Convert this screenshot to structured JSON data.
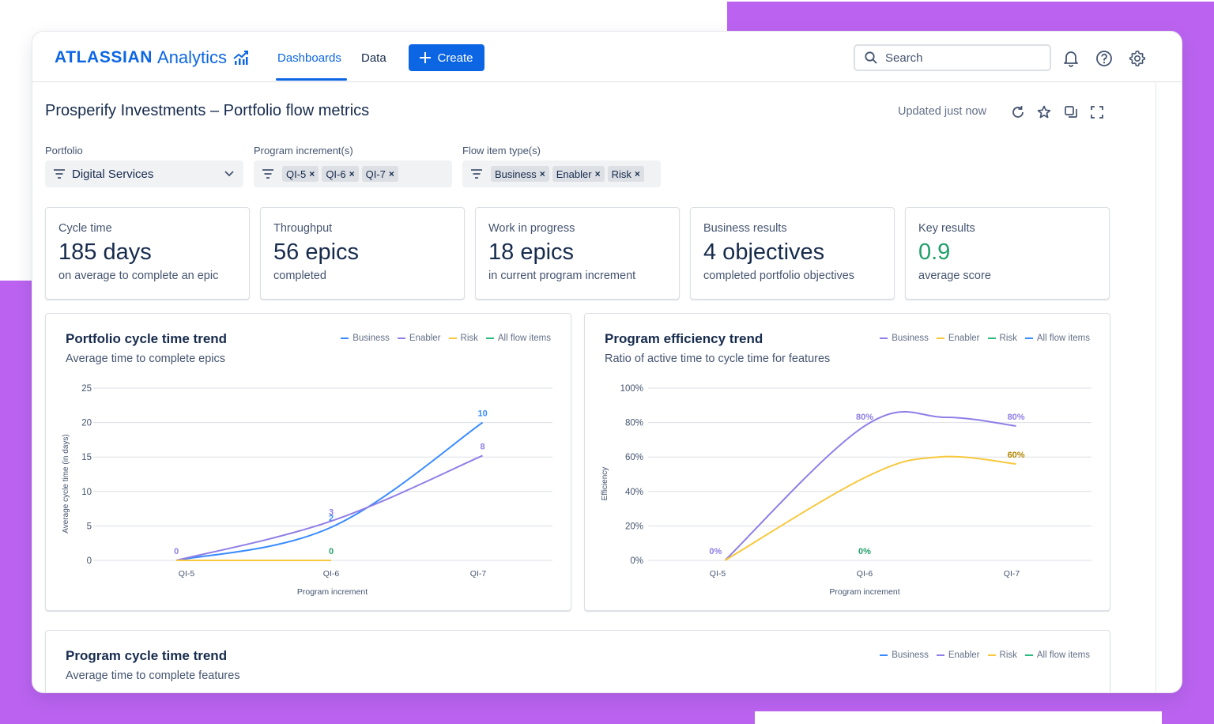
{
  "nav": {
    "brand": "ATLASSIAN",
    "product": "Analytics",
    "tabs": [
      {
        "label": "Dashboards",
        "active": true
      },
      {
        "label": "Data",
        "active": false
      }
    ],
    "create_label": "Create",
    "search_placeholder": "Search",
    "icons": [
      "bell-icon",
      "help-icon",
      "settings-icon"
    ]
  },
  "dashboard": {
    "title": "Prosperify Investments – Portfolio flow metrics",
    "updated": "Updated just now",
    "actions": [
      "refresh-icon",
      "star-icon",
      "copy-icon",
      "fullscreen-icon"
    ]
  },
  "filters": {
    "portfolio": {
      "label": "Portfolio",
      "value": "Digital Services"
    },
    "program_increments": {
      "label": "Program increment(s)",
      "chips": [
        "QI-5",
        "QI-6",
        "QI-7"
      ]
    },
    "flow_item_types": {
      "label": "Flow item type(s)",
      "chips": [
        "Business",
        "Enabler",
        "Risk"
      ]
    }
  },
  "kpis": [
    {
      "label": "Cycle time",
      "value": "185 days",
      "sub": "on average to complete an epic",
      "highlight": false
    },
    {
      "label": "Throughput",
      "value": "56 epics",
      "sub": "completed",
      "highlight": false
    },
    {
      "label": "Work in progress",
      "value": "18 epics",
      "sub": "in current program increment",
      "highlight": false
    },
    {
      "label": "Business results",
      "value": "4 objectives",
      "sub": "completed portfolio objectives",
      "highlight": false
    },
    {
      "label": "Key results",
      "value": "0.9",
      "sub": "average score",
      "highlight": true
    }
  ],
  "colors": {
    "brand": "#0c66e4",
    "business": "#4688ec",
    "enabler": "#9f8fef",
    "risk": "#f5cd47",
    "all_flow": "#2abb7f",
    "purple_line": "#8f7ee7",
    "blue_line": "#388bff",
    "yellow_line": "#f8c83c",
    "green_label": "#22a06b",
    "gold_label": "#b38600",
    "backdrop": "#bb63f0"
  },
  "cards": {
    "portfolio_cycle": {
      "title": "Portfolio cycle time trend",
      "subtitle": "Average time to complete epics",
      "legend": [
        {
          "name": "Business",
          "color": "#388bff"
        },
        {
          "name": "Enabler",
          "color": "#8f7ee7"
        },
        {
          "name": "Risk",
          "color": "#f8c83c"
        },
        {
          "name": "All flow items",
          "color": "#2abb7f"
        }
      ]
    },
    "program_efficiency": {
      "title": "Program efficiency trend",
      "subtitle": "Ratio of active time to cycle time for features",
      "legend": [
        {
          "name": "Business",
          "color": "#8f7ee7"
        },
        {
          "name": "Enabler",
          "color": "#f8c83c"
        },
        {
          "name": "Risk",
          "color": "#2abb7f"
        },
        {
          "name": "All flow items",
          "color": "#388bff"
        }
      ]
    },
    "program_cycle": {
      "title": "Program cycle time trend",
      "subtitle": "Average time to complete features",
      "legend": [
        {
          "name": "Business",
          "color": "#388bff"
        },
        {
          "name": "Enabler",
          "color": "#8f7ee7"
        },
        {
          "name": "Risk",
          "color": "#f8c83c"
        },
        {
          "name": "All flow items",
          "color": "#2abb7f"
        }
      ]
    }
  },
  "chart_data": [
    {
      "type": "line",
      "title": "Portfolio cycle time trend",
      "subtitle": "Average time to complete epics",
      "xlabel": "Program increment",
      "ylabel": "Average cycle time (in days)",
      "categories": [
        "QI-5",
        "QI-6",
        "QI-7"
      ],
      "ylim": [
        0,
        25
      ],
      "yticks": [
        0,
        5,
        10,
        15,
        20,
        25
      ],
      "grid": true,
      "legend_position": "top-right",
      "series": [
        {
          "name": "Business",
          "color": "#388bff",
          "x": [
            -0.07,
            1,
            2.03
          ],
          "values": [
            0,
            4.8,
            20
          ],
          "labels": [
            {
              "i": 1,
              "text": "2"
            },
            {
              "i": 2,
              "text": "10"
            }
          ]
        },
        {
          "name": "Enabler",
          "color": "#8f7ee7",
          "x": [
            -0.07,
            1,
            2.03
          ],
          "values": [
            0,
            5.7,
            15.2
          ],
          "labels": [
            {
              "i": 0,
              "text": "0"
            },
            {
              "i": 1,
              "text": "3"
            },
            {
              "i": 2,
              "text": "8"
            }
          ]
        },
        {
          "name": "Risk",
          "color": "#f8c83c",
          "x": [
            -0.07,
            1
          ],
          "values": [
            0,
            0
          ],
          "labels": [
            {
              "i": 1,
              "text": "0",
              "color": "#22a06b"
            }
          ]
        }
      ]
    },
    {
      "type": "line",
      "title": "Program efficiency trend",
      "subtitle": "Ratio of active time to cycle time for features",
      "xlabel": "Program increment",
      "ylabel": "Efficiency",
      "categories": [
        "QI-5",
        "QI-6",
        "QI-7"
      ],
      "ylim": [
        0,
        100
      ],
      "yticks": [
        0,
        20,
        40,
        60,
        80,
        100
      ],
      "ytick_suffix": "%",
      "grid": true,
      "legend_position": "top-right",
      "series": [
        {
          "name": "Business",
          "color": "#8f7ee7",
          "x": [
            0.05,
            1,
            1.55,
            2.03
          ],
          "values": [
            0,
            78,
            83,
            78
          ],
          "labels": [
            {
              "i": 0,
              "text": "0%",
              "at": 0
            },
            {
              "i": 1,
              "text": "80%"
            },
            {
              "i": 3,
              "text": "80%"
            }
          ]
        },
        {
          "name": "Enabler",
          "color": "#f8c83c",
          "x": [
            0.05,
            1,
            1.5,
            2.03
          ],
          "values": [
            0,
            48,
            60,
            56
          ],
          "labels": [
            {
              "i": 3,
              "text": "60%",
              "color": "#b38600"
            }
          ]
        },
        {
          "name": "Risk",
          "color": "#2abb7f",
          "x": [
            1
          ],
          "values": [
            0
          ],
          "labels": [
            {
              "i": 0,
              "text": "0%",
              "color": "#22a06b"
            }
          ],
          "line": false
        }
      ]
    },
    {
      "type": "line",
      "title": "Program cycle time trend",
      "subtitle": "Average time to complete features",
      "series": []
    }
  ]
}
